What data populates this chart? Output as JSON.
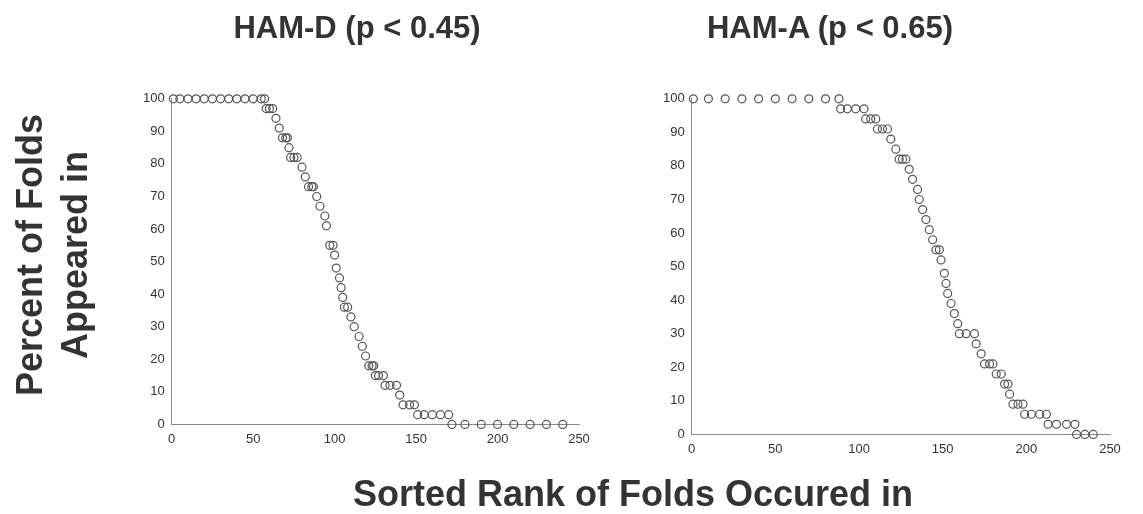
{
  "chart_data": [
    {
      "type": "scatter",
      "title": "HAM-D (p < 0.45)",
      "ylabel": "Percent of Folds Appeared in",
      "xlabel": "Sorted Rank of Folds Occured in",
      "marker": "circle",
      "grid": false,
      "xlim": [
        0,
        250
      ],
      "ylim": [
        0,
        100
      ],
      "xticks": [
        0,
        50,
        100,
        150,
        200,
        250
      ],
      "yticks": [
        0,
        10,
        20,
        30,
        40,
        50,
        60,
        70,
        80,
        90,
        100
      ],
      "series": [
        {
          "color": "#555555",
          "x": [
            1,
            5,
            10,
            15,
            20,
            25,
            30,
            35,
            40,
            45,
            50,
            55,
            57,
            58,
            60,
            62,
            64,
            66,
            68,
            70,
            71,
            72,
            73,
            75,
            77,
            80,
            82,
            84,
            86,
            87,
            89,
            91,
            94,
            95,
            97,
            99,
            100,
            101,
            103,
            104,
            105,
            106,
            108,
            110,
            112,
            115,
            117,
            119,
            121,
            123,
            124,
            125,
            127,
            130,
            131,
            134,
            138,
            140,
            142,
            146,
            149,
            151,
            155,
            160,
            165,
            170,
            172,
            180,
            190,
            200,
            210,
            220,
            230,
            240
          ],
          "values": [
            100,
            100,
            100,
            100,
            100,
            100,
            100,
            100,
            100,
            100,
            100,
            100,
            100,
            97,
            97,
            97,
            94,
            91,
            88,
            88,
            88,
            85,
            82,
            82,
            82,
            79,
            76,
            73,
            73,
            73,
            70,
            67,
            64,
            61,
            55,
            55,
            52,
            48,
            45,
            42,
            39,
            36,
            36,
            33,
            30,
            27,
            24,
            21,
            18,
            18,
            18,
            15,
            15,
            15,
            12,
            12,
            12,
            9,
            6,
            6,
            6,
            3,
            3,
            3,
            3,
            3,
            0,
            0,
            0,
            0,
            0,
            0,
            0,
            0
          ]
        }
      ]
    },
    {
      "type": "scatter",
      "title": "HAM-A (p < 0.65)",
      "marker": "circle",
      "grid": false,
      "xlim": [
        0,
        250
      ],
      "ylim": [
        0,
        100
      ],
      "xticks": [
        0,
        50,
        100,
        150,
        200,
        250
      ],
      "yticks": [
        0,
        10,
        20,
        30,
        40,
        50,
        60,
        70,
        80,
        90,
        100
      ],
      "series": [
        {
          "color": "#555555",
          "x": [
            1,
            10,
            20,
            30,
            40,
            50,
            60,
            70,
            80,
            88,
            89,
            93,
            98,
            103,
            104,
            107,
            110,
            111,
            114,
            117,
            119,
            122,
            124,
            126,
            128,
            130,
            132,
            135,
            136,
            138,
            140,
            142,
            144,
            146,
            148,
            149,
            151,
            152,
            153,
            155,
            157,
            159,
            160,
            164,
            169,
            170,
            173,
            175,
            178,
            180,
            182,
            185,
            187,
            189,
            190,
            192,
            195,
            198,
            199,
            203,
            208,
            212,
            213,
            218,
            224,
            229,
            230,
            235,
            240
          ],
          "values": [
            100,
            100,
            100,
            100,
            100,
            100,
            100,
            100,
            100,
            100,
            97,
            97,
            97,
            97,
            94,
            94,
            94,
            91,
            91,
            91,
            88,
            85,
            82,
            82,
            82,
            79,
            76,
            73,
            70,
            67,
            64,
            61,
            58,
            55,
            55,
            52,
            48,
            45,
            42,
            39,
            36,
            33,
            30,
            30,
            30,
            27,
            24,
            21,
            21,
            21,
            18,
            18,
            15,
            15,
            12,
            9,
            9,
            9,
            6,
            6,
            6,
            6,
            3,
            3,
            3,
            3,
            0,
            0,
            0
          ]
        }
      ]
    }
  ]
}
